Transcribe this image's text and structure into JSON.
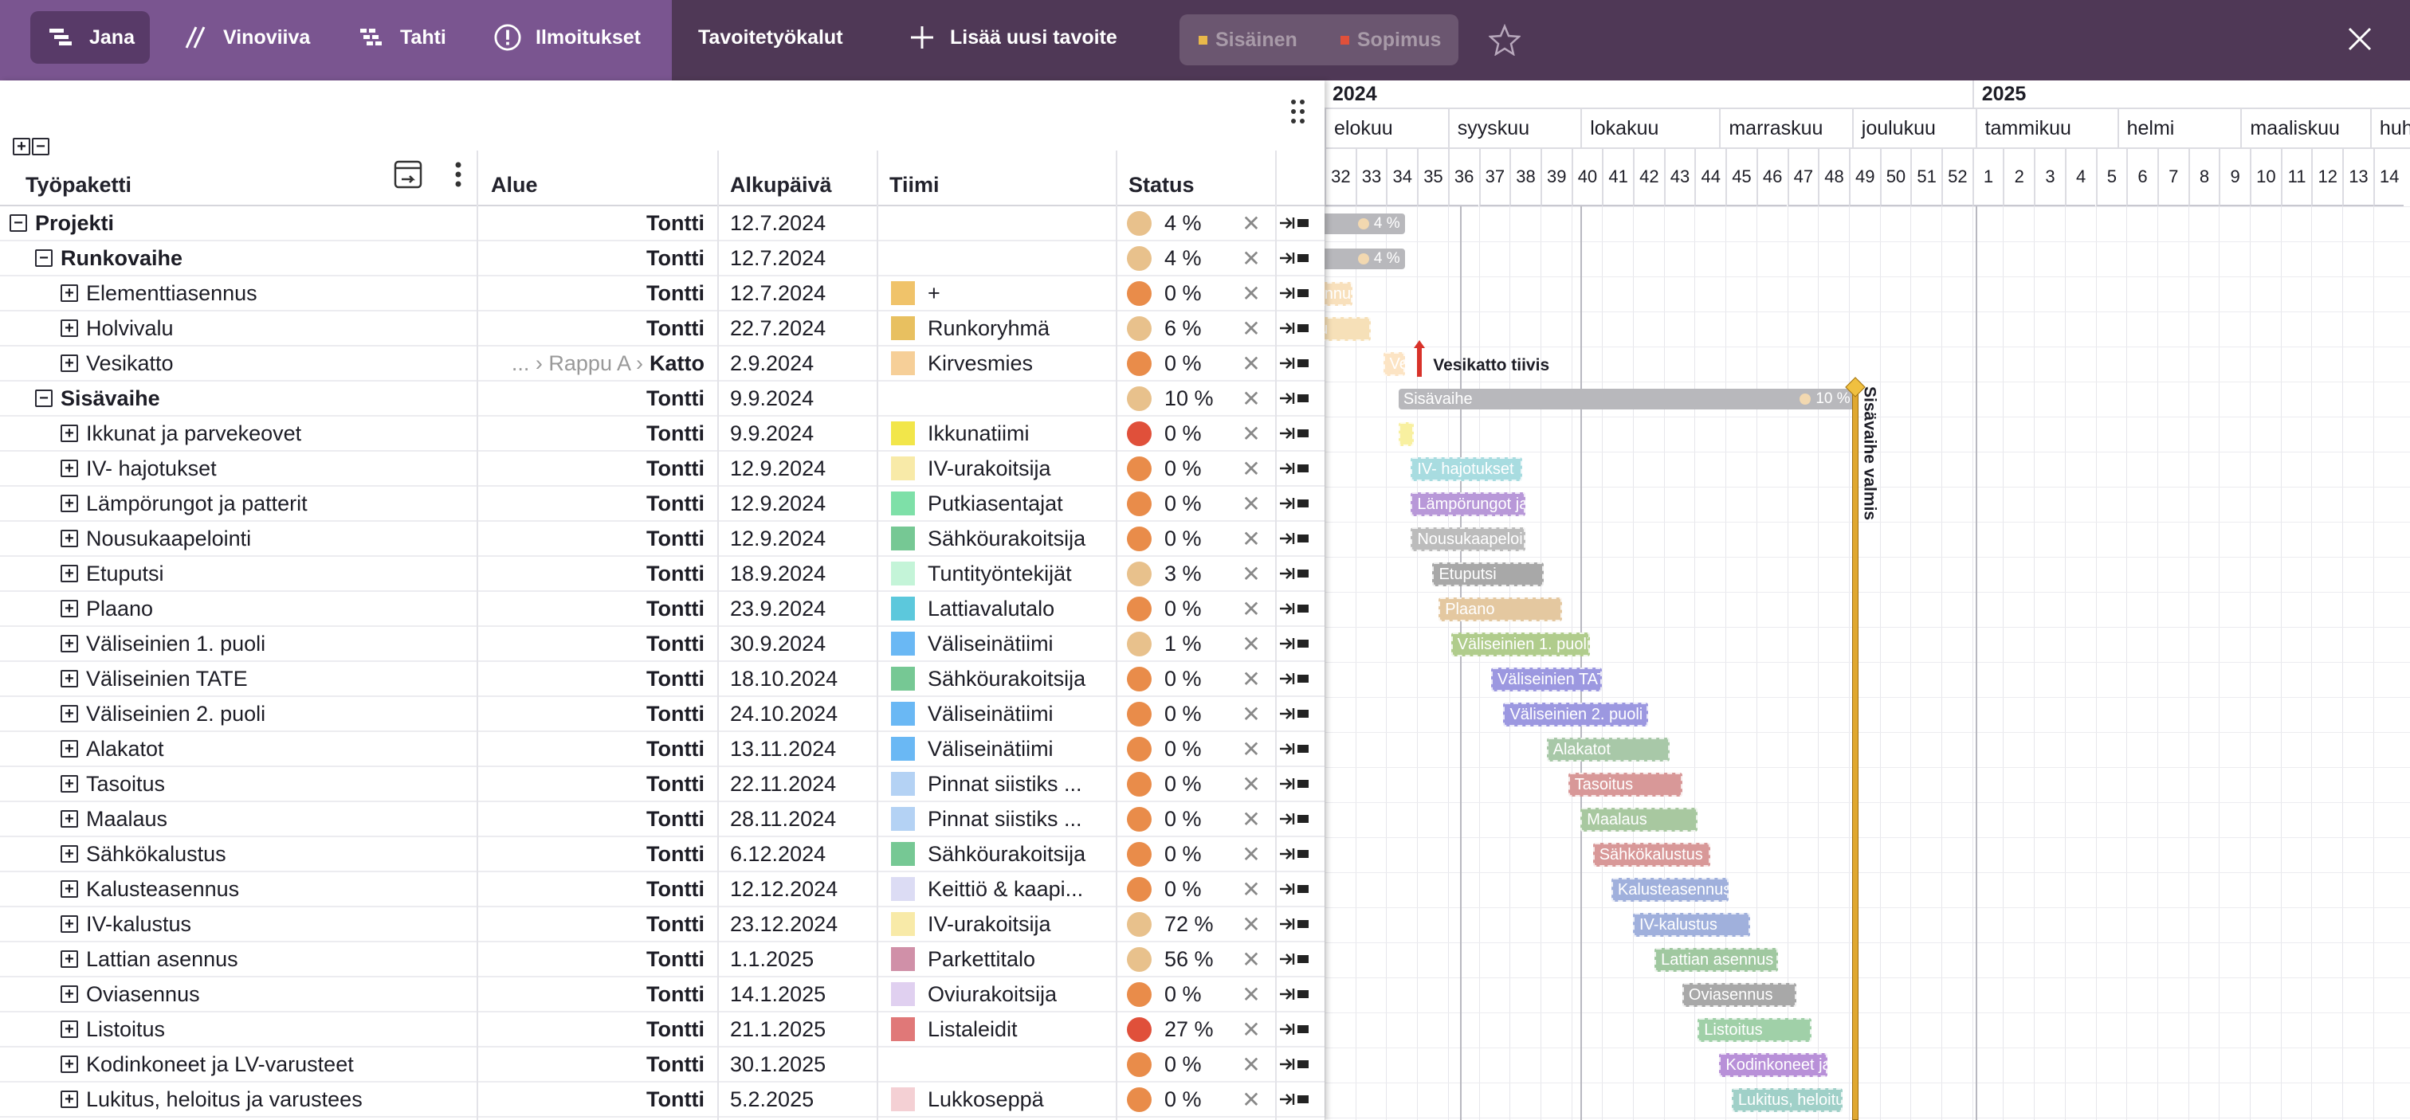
{
  "toolbar": {
    "items": [
      "Jana",
      "Vinoviiva",
      "Tahti",
      "Ilmoitukset",
      "Tavoitetyökalut",
      "Lisää uusi tavoite"
    ],
    "segments": [
      {
        "label": "Sisäinen",
        "color": "#e8b84a"
      },
      {
        "label": "Sopimus",
        "color": "#e0503a"
      }
    ]
  },
  "table": {
    "headers": {
      "tyopaketti": "Työpaketti",
      "alue": "Alue",
      "alkupaiva": "Alkupäivä",
      "tiimi": "Tiimi",
      "status": "Status"
    },
    "rows": [
      {
        "name": "Projekti",
        "level": 0,
        "pm": "−",
        "bold": true,
        "crumb": "",
        "alue": "Tontti",
        "date": "12.7.2024",
        "swatch": "",
        "team": "",
        "status_color": "#e8c18c",
        "pct": "4 %"
      },
      {
        "name": "Runkovaihe",
        "level": 1,
        "pm": "−",
        "bold": true,
        "crumb": "",
        "alue": "Tontti",
        "date": "12.7.2024",
        "swatch": "",
        "team": "",
        "status_color": "#e8c18c",
        "pct": "4 %"
      },
      {
        "name": "Elementtiasennus",
        "level": 2,
        "pm": "+",
        "bold": false,
        "crumb": "",
        "alue": "Tontti",
        "date": "12.7.2024",
        "swatch": "#f0c36a",
        "team": "+",
        "status_color": "#e98c4a",
        "pct": "0 %"
      },
      {
        "name": "Holvivalu",
        "level": 2,
        "pm": "+",
        "bold": false,
        "crumb": "",
        "alue": "Tontti",
        "date": "22.7.2024",
        "swatch": "#e8c060",
        "team": "Runkoryhmä",
        "status_color": "#e8c18c",
        "pct": "6 %"
      },
      {
        "name": "Vesikatto",
        "level": 2,
        "pm": "+",
        "bold": false,
        "crumb": "... › Rappu A ›",
        "alue": "Katto",
        "date": "2.9.2024",
        "swatch": "#f6cf98",
        "team": "Kirvesmies",
        "status_color": "#e98c4a",
        "pct": "0 %"
      },
      {
        "name": "Sisävaihe",
        "level": 1,
        "pm": "−",
        "bold": true,
        "crumb": "",
        "alue": "Tontti",
        "date": "9.9.2024",
        "swatch": "",
        "team": "",
        "status_color": "#e8c18c",
        "pct": "10 %"
      },
      {
        "name": "Ikkunat ja parvekeovet",
        "level": 2,
        "pm": "+",
        "bold": false,
        "crumb": "",
        "alue": "Tontti",
        "date": "9.9.2024",
        "swatch": "#f2e64a",
        "team": "Ikkunatiimi",
        "status_color": "#e0503a",
        "pct": "0 %"
      },
      {
        "name": "IV- hajotukset",
        "level": 2,
        "pm": "+",
        "bold": false,
        "crumb": "",
        "alue": "Tontti",
        "date": "12.9.2024",
        "swatch": "#f8eaa8",
        "team": "IV-urakoitsija",
        "status_color": "#e98c4a",
        "pct": "0 %"
      },
      {
        "name": "Lämpörungot ja patterit",
        "level": 2,
        "pm": "+",
        "bold": false,
        "crumb": "",
        "alue": "Tontti",
        "date": "12.9.2024",
        "swatch": "#7ee0a8",
        "team": "Putkiasentajat",
        "status_color": "#e98c4a",
        "pct": "0 %"
      },
      {
        "name": "Nousukaapelointi",
        "level": 2,
        "pm": "+",
        "bold": false,
        "crumb": "",
        "alue": "Tontti",
        "date": "12.9.2024",
        "swatch": "#76c894",
        "team": "Sähköurakoitsija",
        "status_color": "#e98c4a",
        "pct": "0 %"
      },
      {
        "name": "Etuputsi",
        "level": 2,
        "pm": "+",
        "bold": false,
        "crumb": "",
        "alue": "Tontti",
        "date": "18.9.2024",
        "swatch": "#c4f4d8",
        "team": "Tuntityöntekijät",
        "status_color": "#e8c18c",
        "pct": "3 %"
      },
      {
        "name": "Plaano",
        "level": 2,
        "pm": "+",
        "bold": false,
        "crumb": "",
        "alue": "Tontti",
        "date": "23.9.2024",
        "swatch": "#5cc8dc",
        "team": "Lattiavalutalo",
        "status_color": "#e98c4a",
        "pct": "0 %"
      },
      {
        "name": "Väliseinien 1. puoli",
        "level": 2,
        "pm": "+",
        "bold": false,
        "crumb": "",
        "alue": "Tontti",
        "date": "30.9.2024",
        "swatch": "#6ab8f4",
        "team": "Väliseinätiimi",
        "status_color": "#e8c18c",
        "pct": "1 %"
      },
      {
        "name": "Väliseinien TATE",
        "level": 2,
        "pm": "+",
        "bold": false,
        "crumb": "",
        "alue": "Tontti",
        "date": "18.10.2024",
        "swatch": "#76c894",
        "team": "Sähköurakoitsija",
        "status_color": "#e98c4a",
        "pct": "0 %"
      },
      {
        "name": "Väliseinien 2. puoli",
        "level": 2,
        "pm": "+",
        "bold": false,
        "crumb": "",
        "alue": "Tontti",
        "date": "24.10.2024",
        "swatch": "#6ab8f4",
        "team": "Väliseinätiimi",
        "status_color": "#e98c4a",
        "pct": "0 %"
      },
      {
        "name": "Alakatot",
        "level": 2,
        "pm": "+",
        "bold": false,
        "crumb": "",
        "alue": "Tontti",
        "date": "13.11.2024",
        "swatch": "#6ab8f4",
        "team": "Väliseinätiimi",
        "status_color": "#e98c4a",
        "pct": "0 %"
      },
      {
        "name": "Tasoitus",
        "level": 2,
        "pm": "+",
        "bold": false,
        "crumb": "",
        "alue": "Tontti",
        "date": "22.11.2024",
        "swatch": "#b4d2f4",
        "team": "Pinnat siistiks ...",
        "status_color": "#e98c4a",
        "pct": "0 %"
      },
      {
        "name": "Maalaus",
        "level": 2,
        "pm": "+",
        "bold": false,
        "crumb": "",
        "alue": "Tontti",
        "date": "28.11.2024",
        "swatch": "#b4d2f4",
        "team": "Pinnat siistiks ...",
        "status_color": "#e98c4a",
        "pct": "0 %"
      },
      {
        "name": "Sähkökalustus",
        "level": 2,
        "pm": "+",
        "bold": false,
        "crumb": "",
        "alue": "Tontti",
        "date": "6.12.2024",
        "swatch": "#76c894",
        "team": "Sähköurakoitsija",
        "status_color": "#e98c4a",
        "pct": "0 %"
      },
      {
        "name": "Kalusteasennus",
        "level": 2,
        "pm": "+",
        "bold": false,
        "crumb": "",
        "alue": "Tontti",
        "date": "12.12.2024",
        "swatch": "#dcdcf4",
        "team": "Keittiö & kaapi...",
        "status_color": "#e98c4a",
        "pct": "0 %"
      },
      {
        "name": "IV-kalustus",
        "level": 2,
        "pm": "+",
        "bold": false,
        "crumb": "",
        "alue": "Tontti",
        "date": "23.12.2024",
        "swatch": "#f8eaa8",
        "team": "IV-urakoitsija",
        "status_color": "#e8c18c",
        "pct": "72 %"
      },
      {
        "name": "Lattian asennus",
        "level": 2,
        "pm": "+",
        "bold": false,
        "crumb": "",
        "alue": "Tontti",
        "date": "1.1.2025",
        "swatch": "#d090a8",
        "team": "Parkettitalo",
        "status_color": "#e8c18c",
        "pct": "56 %"
      },
      {
        "name": "Oviasennus",
        "level": 2,
        "pm": "+",
        "bold": false,
        "crumb": "",
        "alue": "Tontti",
        "date": "14.1.2025",
        "swatch": "#e0d0f0",
        "team": "Oviurakoitsija",
        "status_color": "#e98c4a",
        "pct": "0 %"
      },
      {
        "name": "Listoitus",
        "level": 2,
        "pm": "+",
        "bold": false,
        "crumb": "",
        "alue": "Tontti",
        "date": "21.1.2025",
        "swatch": "#e07878",
        "team": "Listaleidit",
        "status_color": "#e0503a",
        "pct": "27 %"
      },
      {
        "name": "Kodinkoneet ja LV-varusteet",
        "level": 2,
        "pm": "+",
        "bold": false,
        "crumb": "",
        "alue": "Tontti",
        "date": "30.1.2025",
        "swatch": "",
        "team": "",
        "status_color": "#e98c4a",
        "pct": "0 %"
      },
      {
        "name": "Lukitus, heloitus ja varustees",
        "level": 2,
        "pm": "+",
        "bold": false,
        "crumb": "",
        "alue": "Tontti",
        "date": "5.2.2025",
        "swatch": "#f4d0d4",
        "team": "Lukkoseppä",
        "status_color": "#e98c4a",
        "pct": "0 %"
      }
    ]
  },
  "timeline": {
    "years": [
      {
        "label": "2024"
      },
      {
        "label": "2025"
      }
    ],
    "months": [
      "elokuu",
      "syyskuu",
      "lokakuu",
      "marraskuu",
      "joulukuu",
      "tammikuu",
      "helmi",
      "maaliskuu",
      "huht"
    ],
    "weeks": [
      "32",
      "33",
      "34",
      "35",
      "36",
      "37",
      "38",
      "39",
      "40",
      "41",
      "42",
      "43",
      "44",
      "45",
      "46",
      "47",
      "48",
      "49",
      "50",
      "51",
      "52",
      "1",
      "2",
      "3",
      "4",
      "5",
      "6",
      "7",
      "8",
      "9",
      "10",
      "11",
      "12",
      "13",
      "14"
    ],
    "milestones": [
      {
        "label": "Vesikatto tiivis",
        "color": "#d8322a"
      },
      {
        "label": "Sisävaihe valmis",
        "color": "#e0a830"
      }
    ],
    "bars": [
      {
        "label": "",
        "pct": "4 %",
        "color": "#b8b8bc",
        "summary": true
      },
      {
        "label": "",
        "pct": "4 %",
        "color": "#b8b8bc",
        "summary": true
      },
      {
        "label": "ennus",
        "pct": "",
        "color": "#f8e0bc",
        "summary": false
      },
      {
        "label": "lu",
        "pct": "",
        "color": "#f6e0b8",
        "summary": false
      },
      {
        "label": "Ves",
        "pct": "",
        "color": "#fce4c4",
        "summary": false
      },
      {
        "label": "Sisävaihe",
        "pct": "10 %",
        "color": "#b8b8bc",
        "summary": true
      },
      {
        "label": "",
        "pct": "",
        "color": "#f8f0a0",
        "summary": false
      },
      {
        "label": "IV- hajotukset",
        "pct": "",
        "color": "#a8dce0",
        "summary": false
      },
      {
        "label": "Lämpörungot ja patterit",
        "pct": "",
        "color": "#b898d8",
        "summary": false
      },
      {
        "label": "Nousukaapelointi",
        "pct": "",
        "color": "#bcbcbc",
        "summary": false
      },
      {
        "label": "Etuputsi",
        "pct": "",
        "color": "#a8a8a8",
        "summary": false
      },
      {
        "label": "Plaano",
        "pct": "",
        "color": "#e4c8a0",
        "summary": false
      },
      {
        "label": "Väliseinien 1. puoli",
        "pct": "",
        "color": "#b0cc8c",
        "summary": false
      },
      {
        "label": "Väliseinien TATE",
        "pct": "",
        "color": "#9c98e0",
        "summary": false
      },
      {
        "label": "Väliseinien 2. puoli",
        "pct": "",
        "color": "#9c98e0",
        "summary": false
      },
      {
        "label": "Alakatot",
        "pct": "",
        "color": "#a8c8a8",
        "summary": false
      },
      {
        "label": "Tasoitus",
        "pct": "",
        "color": "#d89898",
        "summary": false
      },
      {
        "label": "Maalaus",
        "pct": "",
        "color": "#a8c8a0",
        "summary": false
      },
      {
        "label": "Sähkökalustus",
        "pct": "",
        "color": "#d89898",
        "summary": false
      },
      {
        "label": "Kalusteasennus",
        "pct": "",
        "color": "#a0b0dc",
        "summary": false
      },
      {
        "label": "IV-kalustus",
        "pct": "",
        "color": "#a0b0dc",
        "summary": false
      },
      {
        "label": "Lattian asennus",
        "pct": "",
        "color": "#a0c8a0",
        "summary": false
      },
      {
        "label": "Oviasennus",
        "pct": "",
        "color": "#a8a8a8",
        "summary": false
      },
      {
        "label": "Listoitus",
        "pct": "",
        "color": "#a0d0a8",
        "summary": false
      },
      {
        "label": "Kodinkoneet ja LV-varusteet",
        "pct": "",
        "color": "#b890d8",
        "summary": false
      },
      {
        "label": "Lukitus, heloitus ja varustees",
        "pct": "",
        "color": "#a0d0c8",
        "summary": false
      }
    ]
  }
}
